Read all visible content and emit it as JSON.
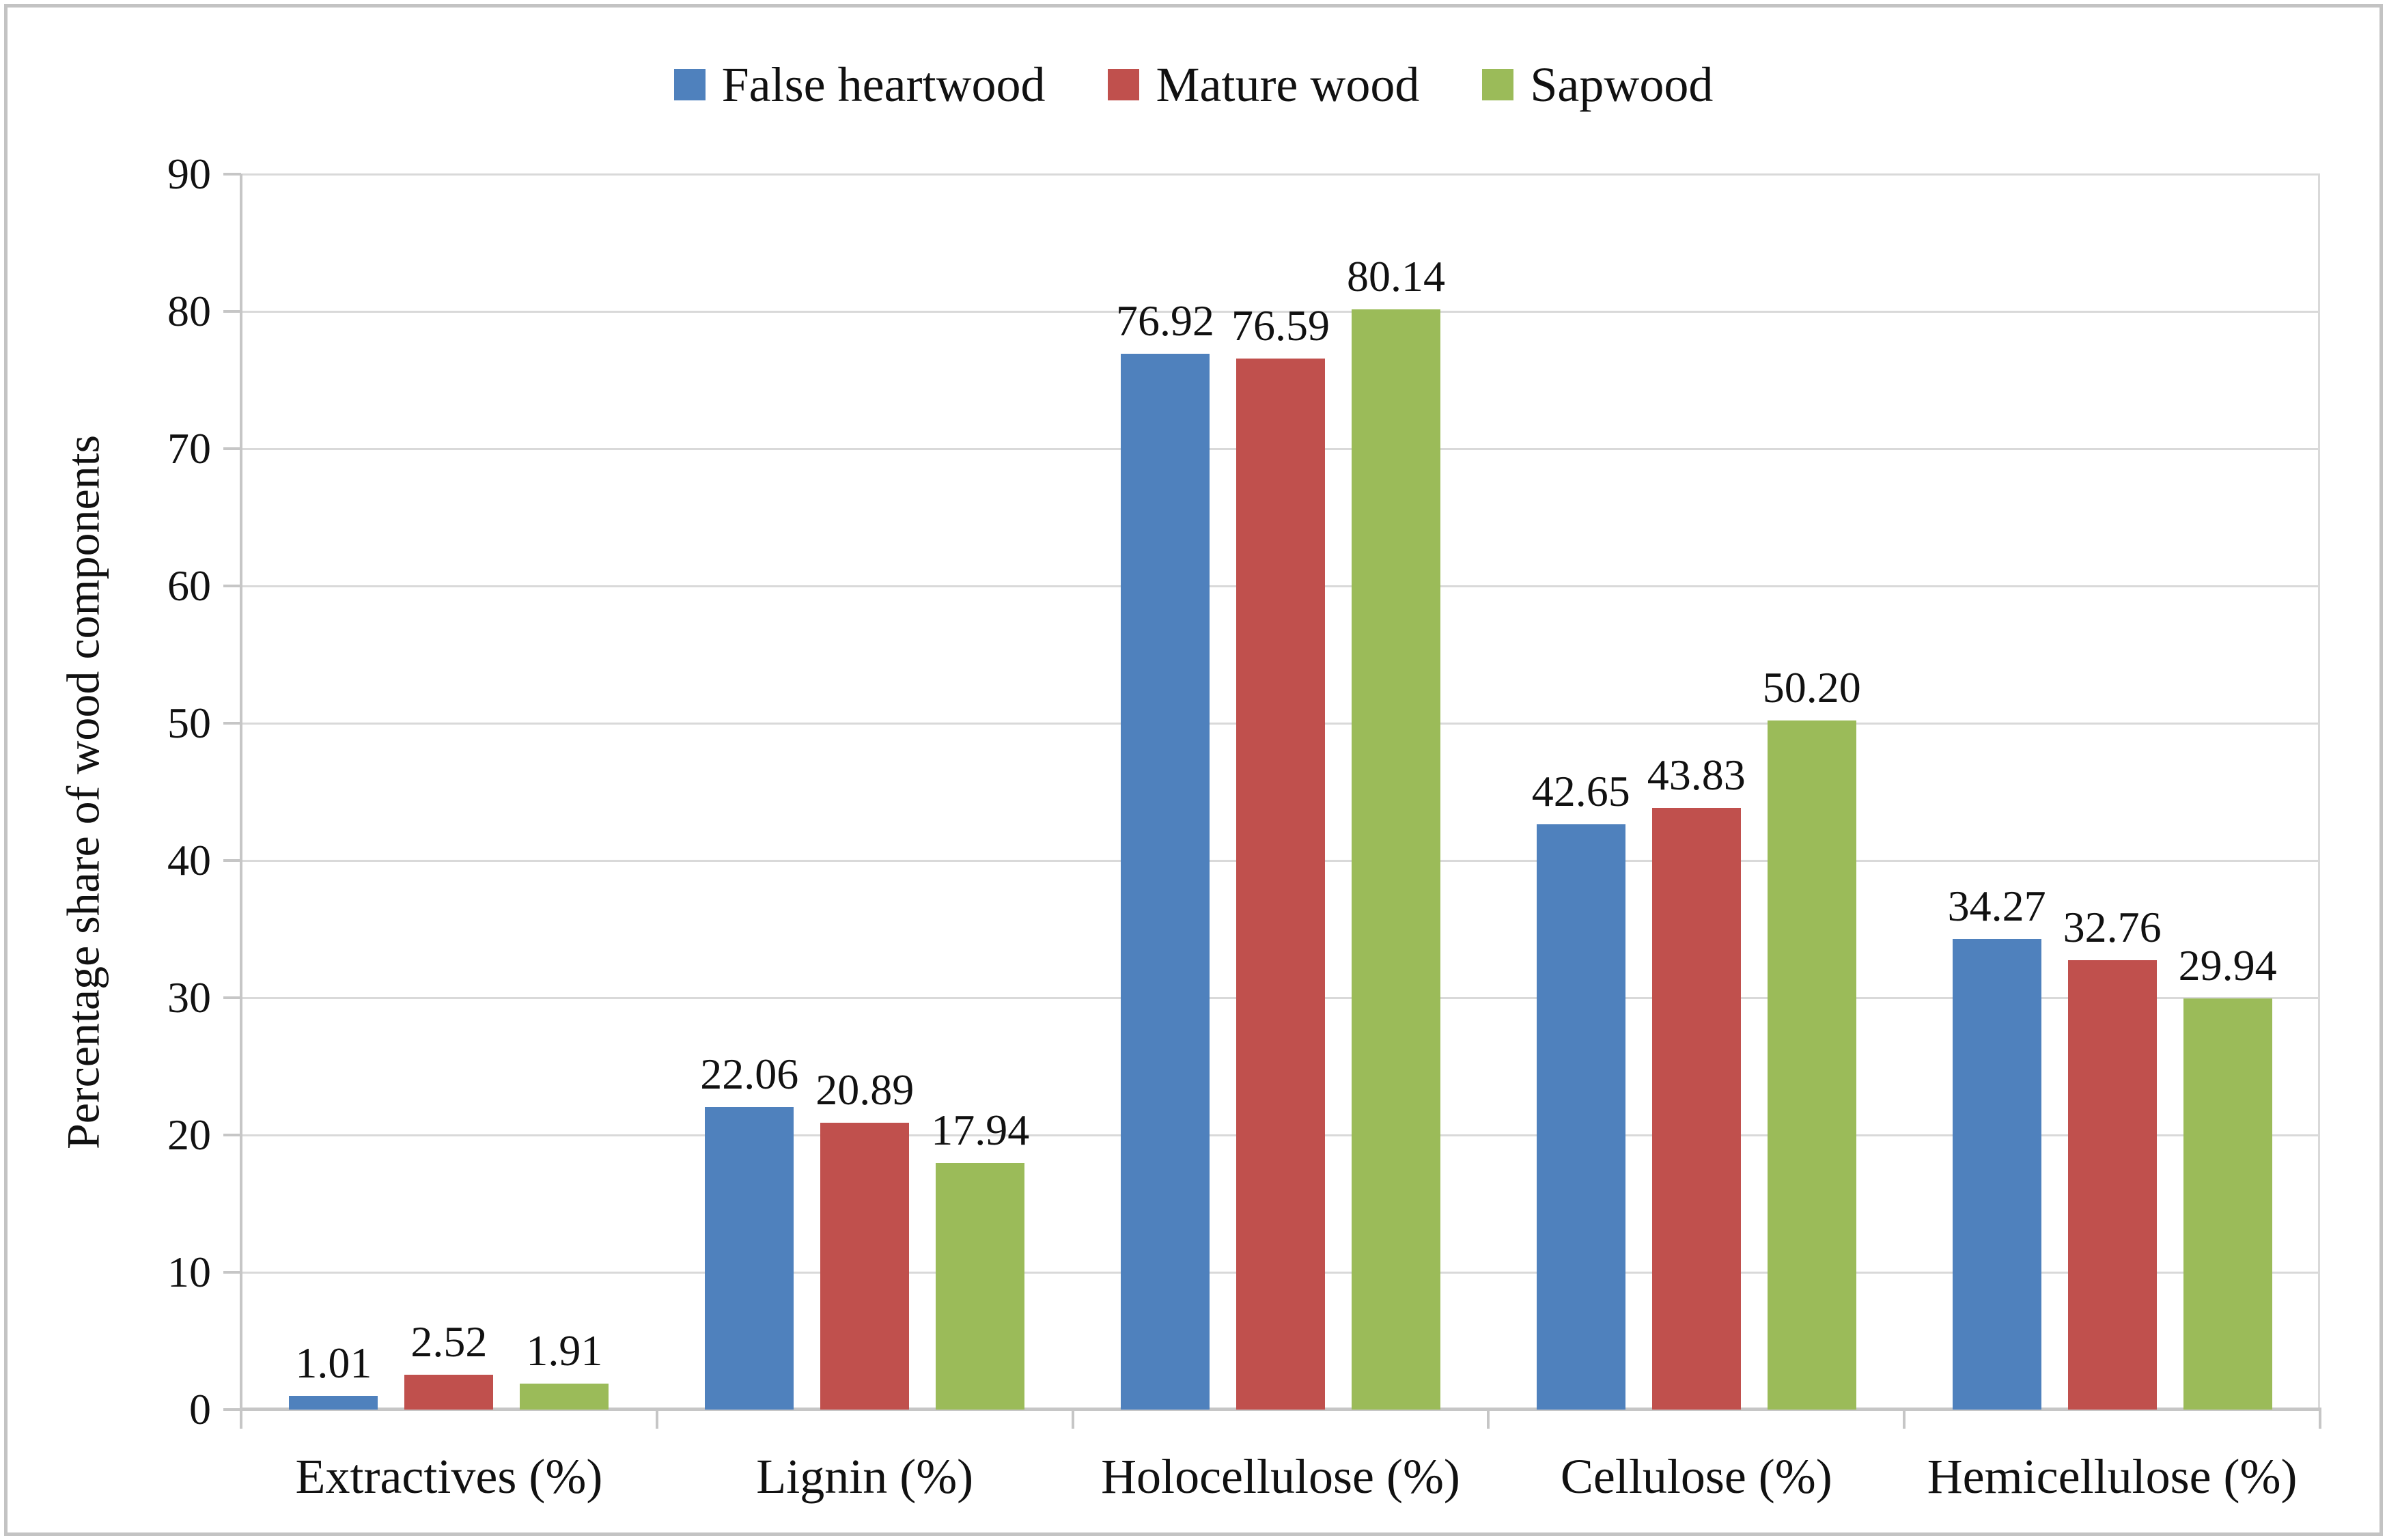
{
  "chart_data": {
    "type": "bar",
    "title": "",
    "categories": [
      "Extractives (%)",
      "Lignin (%)",
      "Holocellulose (%)",
      "Cellulose (%)",
      "Hemicellulose (%)"
    ],
    "series": [
      {
        "name": "False heartwood",
        "color": "#4F81BD",
        "values": [
          1.01,
          22.06,
          76.92,
          42.65,
          34.27
        ],
        "labels": [
          "1.01",
          "22.06",
          "76.92",
          "42.65",
          "34.27"
        ]
      },
      {
        "name": "Mature wood",
        "color": "#C0504D",
        "values": [
          2.52,
          20.89,
          76.59,
          43.83,
          32.76
        ],
        "labels": [
          "2.52",
          "20.89",
          "76.59",
          "43.83",
          "32.76"
        ]
      },
      {
        "name": "Sapwood",
        "color": "#9BBB59",
        "values": [
          1.91,
          17.94,
          80.14,
          50.2,
          29.94
        ],
        "labels": [
          "1.91",
          "17.94",
          "80.14",
          "50.20",
          "29.94"
        ]
      }
    ],
    "xlabel": "",
    "ylabel": "Percentage share of wood components",
    "ylim": [
      0,
      90
    ],
    "yticks": [
      0,
      10,
      20,
      30,
      40,
      50,
      60,
      70,
      80,
      90
    ],
    "grid": true,
    "legend_position": "top-center",
    "colors": {
      "gridline": "#D9D9D9",
      "axis": "#C6C6C6",
      "text": "#111111",
      "chart_border": "#C3C3C3",
      "background": "#FFFFFF"
    }
  }
}
